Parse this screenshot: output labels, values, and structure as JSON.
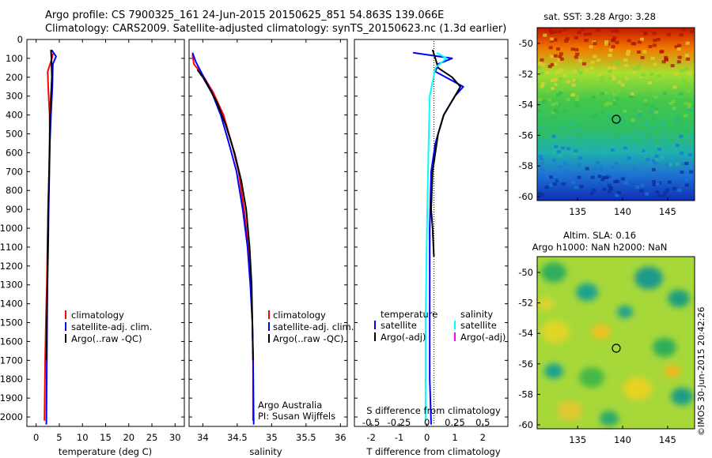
{
  "header": {
    "line1": "Argo profile: CS 7900325_161 24-Jun-2015 20150625_851 54.863S 139.066E",
    "line2": "Climatology: CARS2009. Satellite-adjusted climatology: synTS_20150623.nc (1.3d earlier)"
  },
  "credit": "©IMOS 30-Jun-2015 20:42:26",
  "colors": {
    "climatology": "#ff0000",
    "satellite": "#0000ff",
    "argo": "#000000",
    "sal_satellite": "#00ffff",
    "sal_argo": "#ff00ff",
    "zero_line": "#000000"
  },
  "panels": {
    "temperature": {
      "xlabel": "temperature (deg C)",
      "xticks": [
        "0",
        "5",
        "10",
        "15",
        "20",
        "25",
        "30"
      ],
      "yticks": [
        "0",
        "100",
        "200",
        "300",
        "400",
        "500",
        "600",
        "700",
        "800",
        "900",
        "1000",
        "1100",
        "1200",
        "1300",
        "1400",
        "1500",
        "1600",
        "1700",
        "1800",
        "1900",
        "2000"
      ],
      "legend": [
        "climatology",
        "satellite-adj. clim.",
        "Argo(..raw -QC)"
      ]
    },
    "salinity": {
      "xlabel": "salinity",
      "xticks": [
        "34",
        "34.5",
        "35",
        "35.5",
        "36"
      ],
      "legend": [
        "climatology",
        "satellite-adj. clim.",
        "Argo(..raw -QC)"
      ],
      "note1": "Argo Australia",
      "note2": "PI: Susan Wijffels"
    },
    "difference": {
      "xlabel": "T difference from climatology",
      "xticks_t": [
        "-2",
        "-1",
        "0",
        "1",
        "2"
      ],
      "xticks_s": [
        "-0.5",
        "-0.25",
        "0",
        "0.25",
        "0.5"
      ],
      "s_label": "S difference from climatology",
      "legend_t_title": "temperature",
      "legend_t": [
        "satellite",
        "Argo(-adj)"
      ],
      "legend_s_title": "salinity",
      "legend_s": [
        "satellite",
        "Argo(-adj)"
      ]
    },
    "sst_map": {
      "title": "sat. SST: 3.28 Argo: 3.28",
      "xticks": [
        "135",
        "140",
        "145"
      ],
      "yticks": [
        "-50",
        "-52",
        "-54",
        "-56",
        "-58",
        "-60"
      ]
    },
    "sla_map": {
      "title1": "Altim. SLA: 0.16",
      "title2": "Argo h1000: NaN h2000: NaN",
      "xticks": [
        "135",
        "140",
        "145"
      ],
      "yticks": [
        "-50",
        "-52",
        "-54",
        "-56",
        "-58",
        "-60"
      ]
    }
  },
  "chart_data": [
    {
      "type": "line",
      "ylabel": "",
      "xlabel": "temperature (deg C)",
      "xlim": [
        -2,
        32
      ],
      "ylim": [
        2050,
        0
      ],
      "series": [
        {
          "name": "climatology",
          "x": [
            3.6,
            3.4,
            2.5,
            2.6,
            2.9,
            2.95,
            2.8,
            2.6,
            2.45,
            2.3,
            2.1,
            1.95,
            1.8
          ],
          "y": [
            75,
            100,
            170,
            250,
            400,
            550,
            700,
            900,
            1100,
            1300,
            1500,
            1700,
            2020
          ]
        },
        {
          "name": "satellite-adj. clim.",
          "x": [
            3.3,
            4.3,
            3.6,
            3.5,
            3.2,
            2.95,
            2.85,
            2.7,
            2.6,
            2.45,
            2.35,
            2.3,
            2.2
          ],
          "y": [
            55,
            90,
            130,
            250,
            400,
            550,
            700,
            900,
            1100,
            1300,
            1500,
            1700,
            2040
          ]
        },
        {
          "name": "Argo(..raw -QC)",
          "x": [
            3.2,
            3.3,
            3.4,
            3.2,
            3.0,
            2.9,
            2.8,
            2.6,
            2.5,
            2.4,
            2.3,
            2.2
          ],
          "y": [
            55,
            100,
            200,
            300,
            400,
            550,
            700,
            900,
            1100,
            1300,
            1500,
            1700
          ]
        }
      ]
    },
    {
      "type": "line",
      "xlabel": "salinity",
      "xlim": [
        33.8,
        36.1
      ],
      "ylim": [
        2050,
        0
      ],
      "series": [
        {
          "name": "climatology",
          "x": [
            33.85,
            33.87,
            34.0,
            34.15,
            34.3,
            34.42,
            34.52,
            34.6,
            34.66,
            34.7,
            34.72,
            34.73,
            34.73
          ],
          "y": [
            80,
            130,
            190,
            280,
            400,
            550,
            700,
            900,
            1100,
            1300,
            1500,
            1700,
            2020
          ]
        },
        {
          "name": "satellite-adj. clim.",
          "x": [
            33.85,
            33.9,
            34.0,
            34.13,
            34.26,
            34.38,
            34.49,
            34.58,
            34.65,
            34.69,
            34.72,
            34.73,
            34.74
          ],
          "y": [
            70,
            120,
            190,
            280,
            400,
            550,
            700,
            900,
            1100,
            1300,
            1500,
            1700,
            2040
          ]
        },
        {
          "name": "Argo(..raw -QC)",
          "x": [
            33.92,
            34.0,
            34.08,
            34.2,
            34.33,
            34.46,
            34.56,
            34.63,
            34.68,
            34.71,
            34.72,
            34.73
          ],
          "y": [
            160,
            200,
            250,
            330,
            450,
            600,
            750,
            900,
            1100,
            1300,
            1500,
            1700
          ]
        }
      ]
    },
    {
      "type": "line",
      "xlabel": "T difference from climatology",
      "xlim": [
        -2.6,
        2.9
      ],
      "ylim": [
        2050,
        0
      ],
      "series": [
        {
          "name": "temperature satellite",
          "x": [
            -0.5,
            0.9,
            0.4,
            0.3,
            1.3,
            1.0,
            0.6,
            0.3,
            0.15,
            0.1,
            0.1,
            0.1,
            0.15
          ],
          "y": [
            70,
            100,
            130,
            170,
            250,
            300,
            400,
            550,
            700,
            1000,
            1400,
            1800,
            2040
          ]
        },
        {
          "name": "temperature Argo(-adj)",
          "x": [
            0.2,
            0.3,
            0.4,
            0.9,
            1.2,
            1.0,
            0.6,
            0.4,
            0.3,
            0.2,
            0.15,
            0.2,
            0.25
          ],
          "y": [
            55,
            100,
            150,
            200,
            250,
            300,
            400,
            500,
            600,
            700,
            900,
            1000,
            1150
          ]
        },
        {
          "name": "salinity satellite",
          "x": [
            0.35,
            0.7,
            0.3,
            0.1,
            0.05,
            0.0,
            -0.05,
            -0.05
          ],
          "y": [
            70,
            100,
            150,
            300,
            600,
            1000,
            1500,
            2020
          ]
        },
        {
          "name": "salinity Argo(-adj)",
          "x": [],
          "y": []
        }
      ]
    }
  ]
}
